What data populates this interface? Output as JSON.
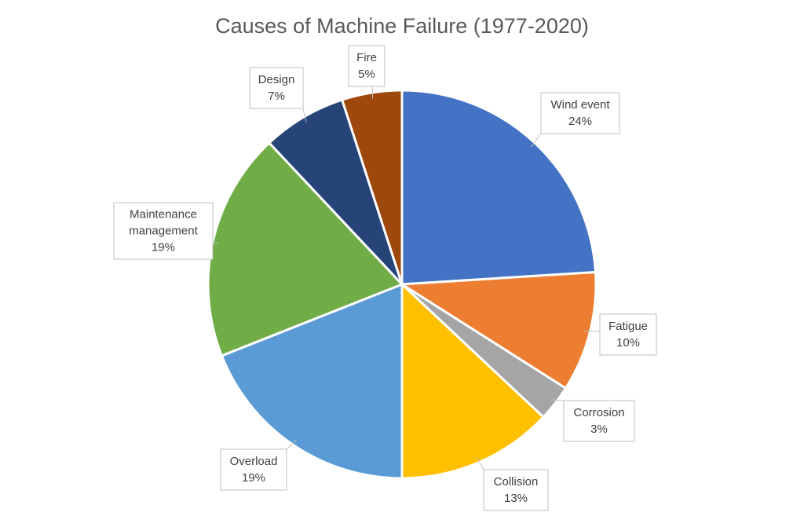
{
  "chart_data": {
    "type": "pie",
    "title": "Causes of Machine Failure (1977-2020)",
    "slices": [
      {
        "label": [
          "Wind event"
        ],
        "value": 24,
        "display": "24%",
        "color": "#4472c4"
      },
      {
        "label": [
          "Fatigue"
        ],
        "value": 10,
        "display": "10%",
        "color": "#ed7d31"
      },
      {
        "label": [
          "Corrosion"
        ],
        "value": 3,
        "display": "3%",
        "color": "#a5a5a5"
      },
      {
        "label": [
          "Collision"
        ],
        "value": 13,
        "display": "13%",
        "color": "#ffc000"
      },
      {
        "label": [
          "Overload"
        ],
        "value": 19,
        "display": "19%",
        "color": "#5b9bd5"
      },
      {
        "label": [
          "Maintenance",
          "management"
        ],
        "value": 19,
        "display": "19%",
        "color": "#70ad47"
      },
      {
        "label": [
          "Design"
        ],
        "value": 7,
        "display": "7%",
        "color": "#264478"
      },
      {
        "label": [
          "Fire"
        ],
        "value": 5,
        "display": "5%",
        "color": "#9e480e"
      }
    ],
    "legend": "none",
    "data_labels": "callouts"
  }
}
